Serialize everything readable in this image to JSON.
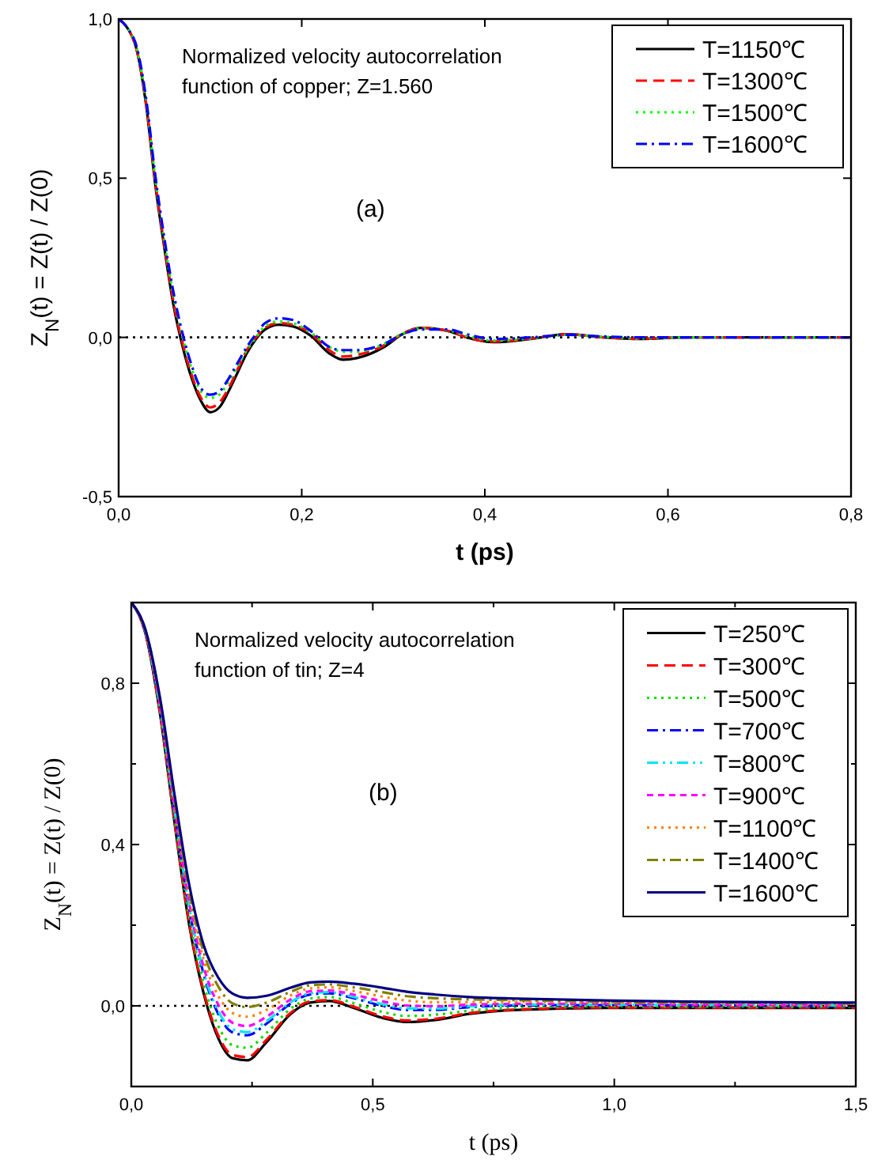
{
  "chart_data": [
    {
      "type": "line",
      "annotations": [
        "Normalized velocity autocorrelation function of copper; Z=1.560",
        "(a)"
      ],
      "xlabel": "t (ps)",
      "ylabel": "Z$_{N}$(t) = Z(t) / Z(0)",
      "xlim": [
        0,
        0.8
      ],
      "ylim": [
        -0.5,
        1.0
      ],
      "xticks": [
        {
          "value": 0,
          "label": "0,0"
        },
        {
          "value": 0.2,
          "label": "0,2"
        },
        {
          "value": 0.4,
          "label": "0,4"
        },
        {
          "value": 0.6,
          "label": "0,6"
        },
        {
          "value": 0.8,
          "label": "0,8"
        }
      ],
      "yticks": [
        {
          "value": -0.5,
          "label": "-0,5"
        },
        {
          "value": 0,
          "label": "0,0"
        },
        {
          "value": 0.5,
          "label": "0,5"
        },
        {
          "value": 1,
          "label": "1,0"
        }
      ],
      "x": [
        0,
        0.01,
        0.02,
        0.03,
        0.04,
        0.05,
        0.06,
        0.07,
        0.08,
        0.09,
        0.1,
        0.11,
        0.12,
        0.13,
        0.14,
        0.15,
        0.16,
        0.175,
        0.19,
        0.21,
        0.23,
        0.245,
        0.26,
        0.29,
        0.31,
        0.33,
        0.36,
        0.38,
        0.41,
        0.45,
        0.49,
        0.53,
        0.57,
        0.62,
        0.7,
        0.8
      ],
      "legend": "top right",
      "grid": false,
      "ref_lines": [
        {
          "axis": "y",
          "value": 0,
          "line_style": "dotted",
          "color": "#000000"
        }
      ],
      "series": [
        {
          "name": "T=1150℃",
          "color": "#000000",
          "line_style": "solid",
          "values": [
            1,
            0.97,
            0.9,
            0.73,
            0.48,
            0.28,
            0.1,
            -0.03,
            -0.13,
            -0.2,
            -0.235,
            -0.22,
            -0.17,
            -0.11,
            -0.05,
            -0.005,
            0.025,
            0.04,
            0.035,
            0.005,
            -0.05,
            -0.07,
            -0.065,
            -0.03,
            0.01,
            0.03,
            0.02,
            0,
            -0.015,
            -0.005,
            0.01,
            0,
            -0.005,
            0,
            0,
            0
          ]
        },
        {
          "name": "T=1300℃",
          "color": "#ff0000",
          "line_style": "dashed",
          "values": [
            1,
            0.97,
            0.9,
            0.735,
            0.49,
            0.29,
            0.11,
            -0.02,
            -0.12,
            -0.19,
            -0.22,
            -0.205,
            -0.16,
            -0.1,
            -0.04,
            0,
            0.03,
            0.045,
            0.04,
            0.012,
            -0.04,
            -0.06,
            -0.055,
            -0.025,
            0.012,
            0.03,
            0.02,
            0,
            -0.013,
            -0.004,
            0.01,
            0,
            -0.004,
            0,
            0,
            0
          ]
        },
        {
          "name": "T=1500℃",
          "color": "#00ff00",
          "line_style": "dotted",
          "values": [
            1,
            0.97,
            0.905,
            0.74,
            0.5,
            0.3,
            0.13,
            0,
            -0.1,
            -0.17,
            -0.19,
            -0.18,
            -0.14,
            -0.09,
            -0.04,
            0,
            0.035,
            0.05,
            0.045,
            0.015,
            -0.03,
            -0.045,
            -0.045,
            -0.02,
            0.012,
            0.028,
            0.022,
            0.005,
            -0.01,
            -0.003,
            0.008,
            0.002,
            -0.003,
            0,
            0,
            0
          ]
        },
        {
          "name": "T=1600℃",
          "color": "#0000ff",
          "line_style": "dashdot",
          "values": [
            1,
            0.97,
            0.91,
            0.75,
            0.51,
            0.31,
            0.14,
            0.01,
            -0.09,
            -0.16,
            -0.18,
            -0.17,
            -0.13,
            -0.08,
            -0.03,
            0.01,
            0.045,
            0.06,
            0.055,
            0.02,
            -0.03,
            -0.04,
            -0.04,
            -0.02,
            0.01,
            0.025,
            0.025,
            0.01,
            -0.005,
            0,
            0.008,
            0.003,
            0,
            0,
            0,
            0
          ]
        }
      ]
    },
    {
      "type": "line",
      "annotations": [
        "Normalized velocity autocorrelation function of tin; Z=4",
        "(b)"
      ],
      "xlabel": "t (ps)",
      "ylabel": "Z$_{N}$(t) = Z(t) / Z(0)",
      "xlim": [
        0,
        1.5
      ],
      "ylim": [
        -0.2,
        1.0
      ],
      "xticks": [
        {
          "value": 0,
          "label": "0,0"
        },
        {
          "value": 0.25,
          "label": null
        },
        {
          "value": 0.5,
          "label": "0,5"
        },
        {
          "value": 0.75,
          "label": null
        },
        {
          "value": 1,
          "label": "1,0"
        },
        {
          "value": 1.25,
          "label": null
        },
        {
          "value": 1.5,
          "label": "1,5"
        }
      ],
      "yticks": [
        {
          "value": 0,
          "label": "0,0"
        },
        {
          "value": 0.2,
          "label": null
        },
        {
          "value": 0.4,
          "label": "0,4"
        },
        {
          "value": 0.6,
          "label": null
        },
        {
          "value": 0.8,
          "label": "0,8"
        }
      ],
      "x": [
        0,
        0.03,
        0.06,
        0.09,
        0.12,
        0.15,
        0.18,
        0.21,
        0.24,
        0.28,
        0.33,
        0.37,
        0.41,
        0.46,
        0.52,
        0.57,
        0.63,
        0.7,
        0.8,
        1.0,
        1.2,
        1.5
      ],
      "legend": "top right",
      "grid": false,
      "ref_lines": [
        {
          "axis": "y",
          "value": 0,
          "line_style": "dotted",
          "color": "#000000"
        }
      ],
      "series": [
        {
          "name": "T=250℃",
          "color": "#000000",
          "line_style": "solid",
          "values": [
            1,
            0.92,
            0.72,
            0.45,
            0.2,
            0.03,
            -0.08,
            -0.13,
            -0.135,
            -0.09,
            -0.02,
            0.008,
            0.012,
            -0.005,
            -0.03,
            -0.04,
            -0.035,
            -0.02,
            -0.01,
            -0.005,
            -0.005,
            -0.005
          ]
        },
        {
          "name": "T=300℃",
          "color": "#ff0000",
          "line_style": "dashed",
          "values": [
            1,
            0.92,
            0.722,
            0.454,
            0.205,
            0.036,
            -0.073,
            -0.122,
            -0.127,
            -0.084,
            -0.017,
            0.011,
            0.014,
            -0.002,
            -0.026,
            -0.036,
            -0.032,
            -0.018,
            -0.009,
            -0.004,
            -0.004,
            -0.004
          ]
        },
        {
          "name": "T=500℃",
          "color": "#00dd00",
          "line_style": "dotted",
          "values": [
            1,
            0.922,
            0.728,
            0.464,
            0.22,
            0.054,
            -0.05,
            -0.098,
            -0.104,
            -0.067,
            -0.007,
            0.018,
            0.022,
            0.007,
            -0.015,
            -0.025,
            -0.022,
            -0.012,
            -0.004,
            -0.001,
            -0.002,
            -0.002
          ]
        },
        {
          "name": "T=700℃",
          "color": "#0000ff",
          "line_style": "dashdot",
          "values": [
            1,
            0.924,
            0.736,
            0.478,
            0.24,
            0.078,
            -0.02,
            -0.066,
            -0.073,
            -0.044,
            0.006,
            0.028,
            0.031,
            0.019,
            0,
            -0.01,
            -0.01,
            -0.003,
            0.001,
            0.002,
            0.001,
            0
          ]
        },
        {
          "name": "T=800℃",
          "color": "#00e5ee",
          "line_style": "dashdotdot",
          "values": [
            1,
            0.925,
            0.738,
            0.482,
            0.245,
            0.084,
            -0.013,
            -0.058,
            -0.065,
            -0.038,
            0.009,
            0.031,
            0.034,
            0.022,
            0.004,
            -0.006,
            -0.007,
            -0.001,
            0.003,
            0.003,
            0.002,
            0.001
          ]
        },
        {
          "name": "T=900℃",
          "color": "#ff00ff",
          "line_style": "shortdash",
          "values": [
            1,
            0.926,
            0.742,
            0.489,
            0.255,
            0.096,
            0.003,
            -0.042,
            -0.05,
            -0.027,
            0.016,
            0.036,
            0.038,
            0.028,
            0.011,
            0.001,
            -0.001,
            0.003,
            0.005,
            0.005,
            0.003,
            0.002
          ]
        },
        {
          "name": "T=1100℃",
          "color": "#ff8000",
          "line_style": "dotted",
          "values": [
            1,
            0.927,
            0.748,
            0.499,
            0.27,
            0.114,
            0.025,
            -0.018,
            -0.027,
            -0.01,
            0.026,
            0.043,
            0.046,
            0.037,
            0.023,
            0.013,
            0.009,
            0.009,
            0.01,
            0.008,
            0.006,
            0.004
          ]
        },
        {
          "name": "T=1400℃",
          "color": "#808000",
          "line_style": "dashdot",
          "values": [
            1,
            0.929,
            0.754,
            0.51,
            0.285,
            0.132,
            0.048,
            0.006,
            -0.003,
            0.008,
            0.035,
            0.051,
            0.053,
            0.046,
            0.034,
            0.024,
            0.019,
            0.016,
            0.014,
            0.01,
            0.008,
            0.006
          ]
        },
        {
          "name": "T=1600℃",
          "color": "#000080",
          "line_style": "solid",
          "values": [
            1,
            0.93,
            0.76,
            0.52,
            0.3,
            0.15,
            0.07,
            0.03,
            0.02,
            0.025,
            0.045,
            0.058,
            0.06,
            0.055,
            0.045,
            0.035,
            0.028,
            0.022,
            0.018,
            0.013,
            0.01,
            0.008
          ]
        }
      ]
    }
  ]
}
